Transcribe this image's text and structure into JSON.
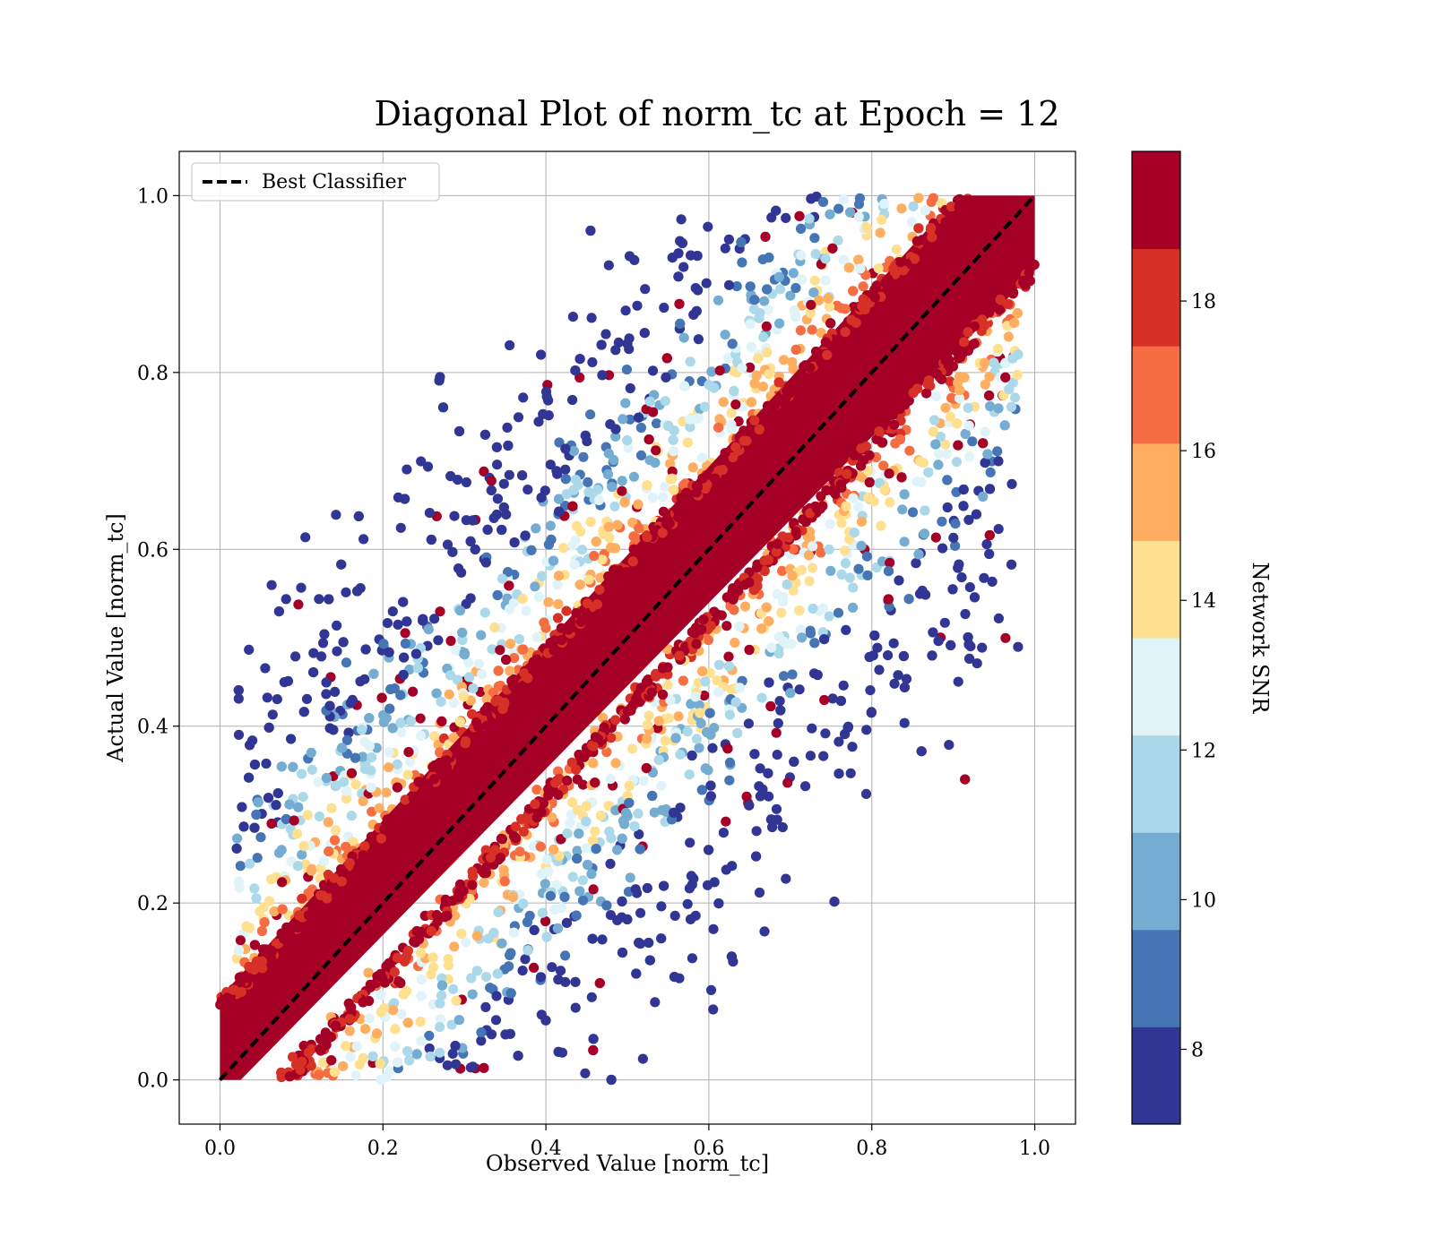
{
  "chart_data": {
    "type": "scatter",
    "title": "Diagonal Plot of norm_tc at Epoch = 12",
    "xlabel": "Observed Value [norm_tc]",
    "ylabel": "Actual Value [norm_tc]",
    "xlim": [
      -0.05,
      1.05
    ],
    "ylim": [
      -0.05,
      1.05
    ],
    "xticks": [
      "0.0",
      "0.2",
      "0.4",
      "0.6",
      "0.8",
      "1.0"
    ],
    "yticks": [
      "0.0",
      "0.2",
      "0.4",
      "0.6",
      "0.8",
      "1.0"
    ],
    "grid": true,
    "legend": {
      "placement": "upper-left",
      "entries": [
        "Best Classifier"
      ]
    },
    "reference_line": {
      "name": "Best Classifier",
      "style": "dashed",
      "color": "#000000",
      "x": [
        0,
        1
      ],
      "y": [
        0,
        1
      ]
    },
    "dense_band": {
      "half_width": 0.085,
      "color": "#a50026",
      "note_snr_min": 19
    },
    "scatter_distribution": {
      "x_range": [
        0.02,
        0.98
      ],
      "y_range": [
        0.0,
        1.0
      ],
      "snr_range": [
        7,
        20
      ]
    },
    "colorbar": {
      "label": "Network SNR",
      "range": [
        7,
        20
      ],
      "ticks": [
        "8",
        "10",
        "12",
        "14",
        "16",
        "18"
      ],
      "levels": [
        7,
        8.3,
        9.6,
        10.9,
        12.2,
        13.5,
        14.8,
        16.1,
        17.4,
        18.7,
        20
      ],
      "colors": [
        "#313695",
        "#4575b4",
        "#74add1",
        "#abd9e9",
        "#e0f3f8",
        "#fee090",
        "#fdae61",
        "#f46d43",
        "#d73027",
        "#a50026"
      ]
    }
  }
}
